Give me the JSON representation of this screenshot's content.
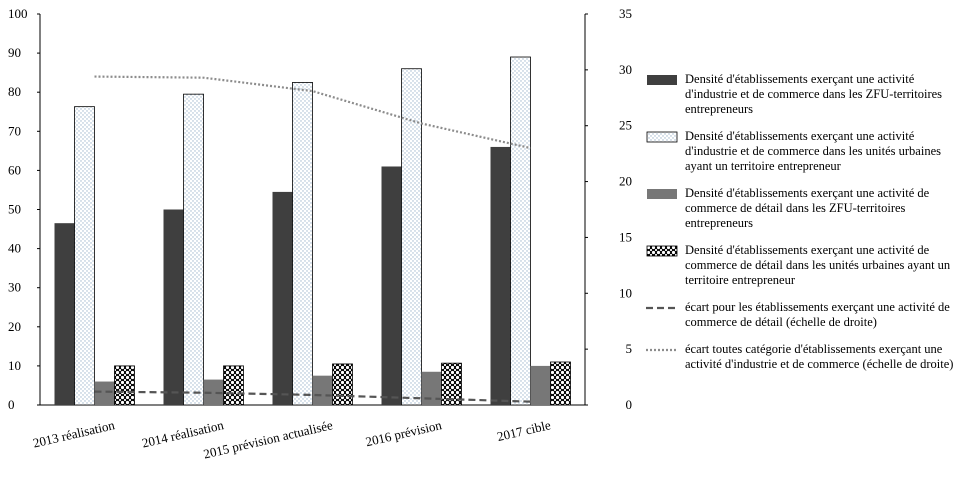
{
  "chart_data": {
    "type": "bar",
    "categories": [
      "2013 réalisation",
      "2014 réalisation",
      "2015 prévision actualisée",
      "2016 prévision",
      "2017 cible"
    ],
    "series": [
      {
        "name": "Densité d'établissements exerçant une activité d'industrie et de commerce dans les ZFU-territoires entrepreneurs",
        "color": "#3f3f3f",
        "pattern": "solid",
        "values": [
          46.5,
          50,
          54.5,
          61,
          66
        ]
      },
      {
        "name": "Densité d'établissements exerçant une activité d'industrie et de commerce dans les unités urbaines ayant un territoire entrepreneur",
        "color": "#9fb6cd",
        "pattern": "dots",
        "values": [
          76.3,
          79.5,
          82.5,
          86,
          89
        ]
      },
      {
        "name": "Densité d'établissements exerçant une activité de commerce de détail dans les ZFU-territoires entrepreneurs",
        "color": "#777777",
        "pattern": "solid",
        "values": [
          6,
          6.5,
          7.5,
          8.5,
          10
        ]
      },
      {
        "name": "Densité d'établissements exerçant une activité de commerce de détail dans les unités urbaines ayant un territoire entrepreneur",
        "color": "#000000",
        "pattern": "crosshatch",
        "values": [
          10,
          10,
          10.5,
          10.7,
          11
        ]
      },
      {
        "name": "écart pour les établissements exerçant une activité de commerce de détail (échelle de droite)",
        "type": "line",
        "axis": "y2",
        "color": "#555555",
        "style": "dashed",
        "values": [
          1.2,
          1.1,
          0.9,
          0.6,
          0.3
        ]
      },
      {
        "name": "écart toutes catégorie d'établissements exerçant une activité d'industrie et de commerce (échelle de droite)",
        "type": "line",
        "axis": "y2",
        "color": "#8c8c8c",
        "style": "dotted",
        "values": [
          29.4,
          29.3,
          28.1,
          25.2,
          23.0
        ]
      }
    ],
    "ylim": [
      0,
      100
    ],
    "yticks": [
      0,
      10,
      20,
      30,
      40,
      50,
      60,
      70,
      80,
      90,
      100
    ],
    "y2lim": [
      0,
      35
    ],
    "y2ticks": [
      0,
      5,
      10,
      15,
      20,
      25,
      30,
      35
    ]
  }
}
